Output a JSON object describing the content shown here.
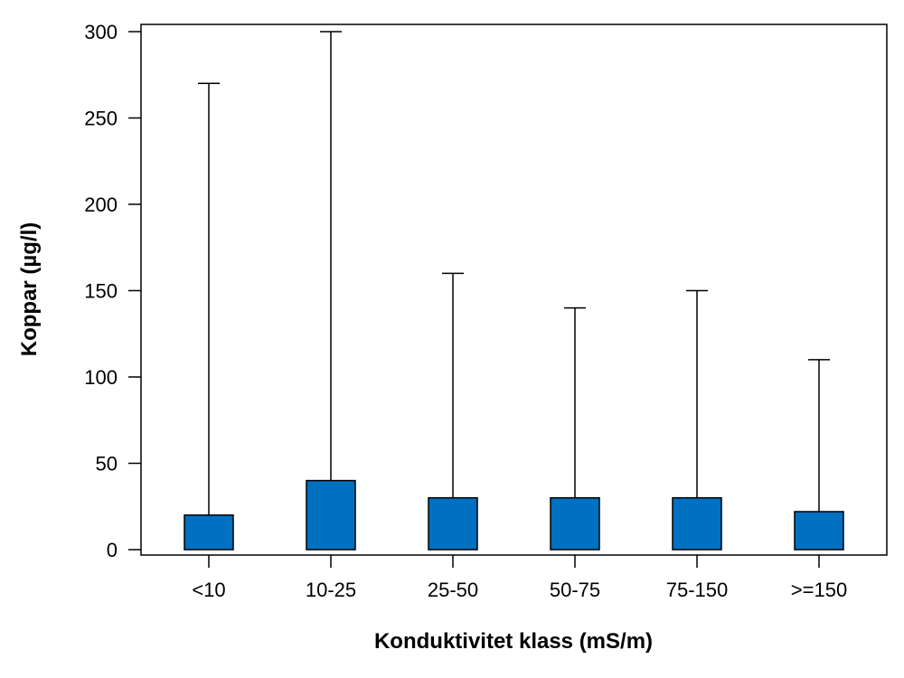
{
  "chart_data": {
    "type": "bar",
    "title": "",
    "xlabel": "Konduktivitet klass (mS/m)",
    "ylabel": "Koppar (µg/l)",
    "ylim": [
      0,
      300
    ],
    "yticks": [
      0,
      50,
      100,
      150,
      200,
      250,
      300
    ],
    "categories": [
      "<10",
      "10-25",
      "25-50",
      "50-75",
      "75-150",
      ">=150"
    ],
    "values": [
      20,
      40,
      30,
      30,
      30,
      22
    ],
    "whisker_max": [
      270,
      300,
      160,
      140,
      150,
      110
    ],
    "grid": false,
    "legend": "none",
    "colors": {
      "bar_fill": "#0070c0",
      "stroke": "#000000"
    }
  }
}
